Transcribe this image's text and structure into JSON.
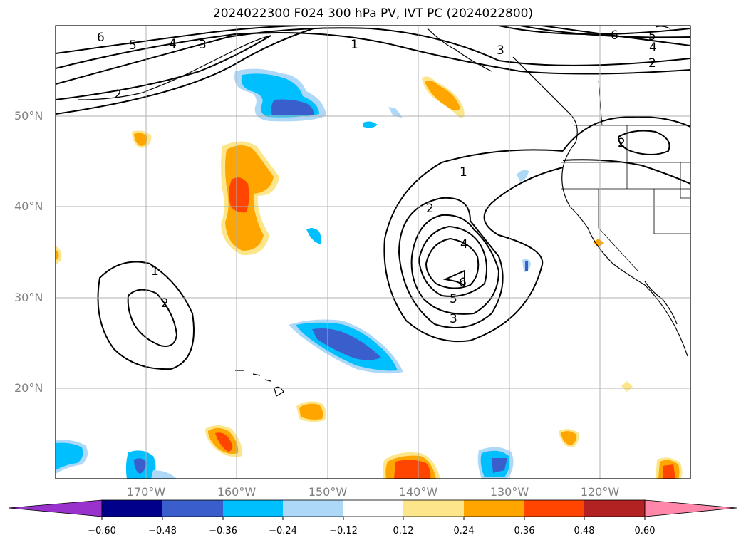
{
  "title": "2024022300 F024 300 hPa PV, IVT PC (2024022800)",
  "lat_labels": [
    "50°N",
    "40°N",
    "30°N",
    "20°N"
  ],
  "lon_labels": [
    "170°W",
    "160°W",
    "150°W",
    "140°W",
    "130°W",
    "120°W"
  ],
  "contour_labels": [
    "6",
    "5",
    "4",
    "3",
    "2",
    "1",
    "6",
    "5",
    "4",
    "3",
    "2",
    "1",
    "2",
    "2",
    "1",
    "2",
    "4",
    "6",
    "5",
    "3"
  ],
  "colorbar": {
    "ticks": [
      "−0.60",
      "−0.48",
      "−0.36",
      "−0.24",
      "−0.12",
      "0.12",
      "0.24",
      "0.36",
      "0.48",
      "0.60"
    ],
    "colors": [
      "#9932cc",
      "#00008b",
      "#3a5fcd",
      "#00bfff",
      "#add8f8",
      "#ffffff",
      "#fde68a",
      "#ffa500",
      "#ff4500",
      "#b22222",
      "#ff88aa"
    ]
  }
}
